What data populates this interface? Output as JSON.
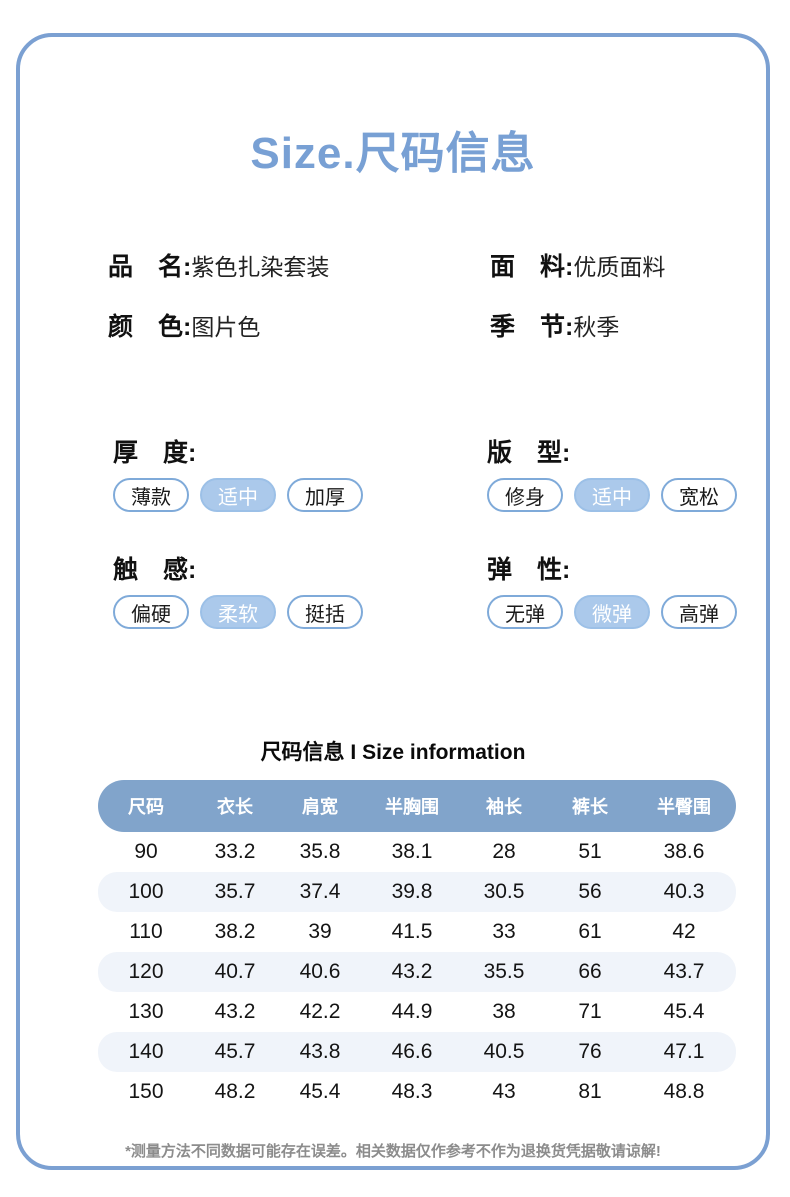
{
  "page": {
    "title": "Size.尺码信息"
  },
  "colors": {
    "accent_blue": "#78A0D4",
    "card_border": "#7BA0D2",
    "header_pill": "#81A4CB",
    "selected_tag_bg": "#ABC9EB",
    "tag_border": "#7FAAD9",
    "row_band": "#F0F4FA",
    "footnote_gray": "#8C8C8C"
  },
  "product_info": [
    {
      "label": "品　名:",
      "value": "紫色扎染套装"
    },
    {
      "label": "面　料:",
      "value": "优质面料"
    },
    {
      "label": "颜　色:",
      "value": "图片色"
    },
    {
      "label": "季　节:",
      "value": "秋季"
    }
  ],
  "attributes": [
    {
      "label": "厚　度:",
      "options": [
        "薄款",
        "适中",
        "加厚"
      ],
      "selected": 1
    },
    {
      "label": "版　型:",
      "options": [
        "修身",
        "适中",
        "宽松"
      ],
      "selected": 1
    },
    {
      "label": "触　感:",
      "options": [
        "偏硬",
        "柔软",
        "挺括"
      ],
      "selected": 1
    },
    {
      "label": "弹　性:",
      "options": [
        "无弹",
        "微弹",
        "高弹"
      ],
      "selected": 1
    }
  ],
  "size_table": {
    "title": "尺码信息 I Size information",
    "columns": [
      "尺码",
      "衣长",
      "肩宽",
      "半胸围",
      "袖长",
      "裤长",
      "半臀围"
    ],
    "rows": [
      [
        "90",
        "33.2",
        "35.8",
        "38.1",
        "28",
        "51",
        "38.6"
      ],
      [
        "100",
        "35.7",
        "37.4",
        "39.8",
        "30.5",
        "56",
        "40.3"
      ],
      [
        "110",
        "38.2",
        "39",
        "41.5",
        "33",
        "61",
        "42"
      ],
      [
        "120",
        "40.7",
        "40.6",
        "43.2",
        "35.5",
        "66",
        "43.7"
      ],
      [
        "130",
        "43.2",
        "42.2",
        "44.9",
        "38",
        "71",
        "45.4"
      ],
      [
        "140",
        "45.7",
        "43.8",
        "46.6",
        "40.5",
        "76",
        "47.1"
      ],
      [
        "150",
        "48.2",
        "45.4",
        "48.3",
        "43",
        "81",
        "48.8"
      ]
    ]
  },
  "footnote": "*测量方法不同数据可能存在误差。相关数据仅作参考不作为退换货凭据敬请谅解!"
}
